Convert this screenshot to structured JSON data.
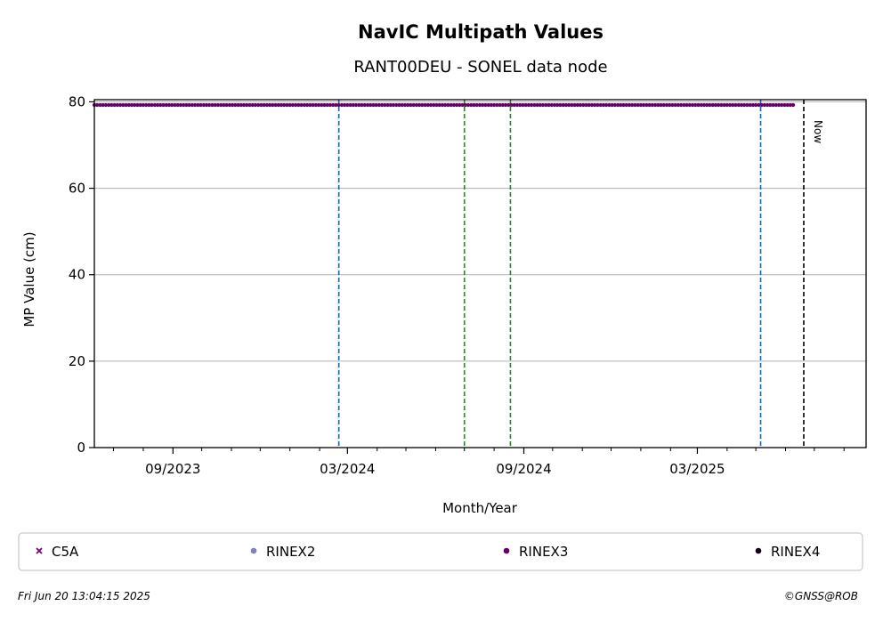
{
  "chart_data": {
    "type": "scatter",
    "title": "NavIC Multipath Values",
    "subtitle": "RANT00DEU - SONEL data node",
    "xlabel": "Month/Year",
    "ylabel": "MP Value (cm)",
    "xlim": [
      "2023-06-11",
      "2025-08-24"
    ],
    "ylim": [
      0,
      80.5
    ],
    "yticks": [
      0,
      20,
      40,
      60,
      80
    ],
    "xticks": [
      {
        "date": "2023-09-01",
        "label": "09/2023"
      },
      {
        "date": "2024-03-01",
        "label": "03/2024"
      },
      {
        "date": "2024-09-01",
        "label": "09/2024"
      },
      {
        "date": "2025-03-01",
        "label": "03/2025"
      }
    ],
    "minor_ticks": [
      "2023-07-01",
      "2023-08-01",
      "2023-10-01",
      "2023-11-01",
      "2023-12-01",
      "2024-01-01",
      "2024-02-01",
      "2024-04-01",
      "2024-05-01",
      "2024-06-01",
      "2024-07-01",
      "2024-08-01",
      "2024-10-01",
      "2024-11-01",
      "2024-12-01",
      "2025-01-01",
      "2025-02-01",
      "2025-04-01",
      "2025-05-01",
      "2025-06-01",
      "2025-07-01",
      "2025-08-01"
    ],
    "grid": "horizontal",
    "series": [
      {
        "name": "RINEX3",
        "color": "#660066",
        "marker": "dot",
        "x_start": "2023-06-11",
        "x_end": "2025-06-11",
        "y": 81.3
      }
    ],
    "vlines": [
      {
        "date": "2024-02-21",
        "color": "#1f5fa0",
        "style": "dashed"
      },
      {
        "date": "2024-07-01",
        "color": "#1a8a1a",
        "style": "dashed"
      },
      {
        "date": "2024-08-18",
        "color": "#1a8a1a",
        "style": "dashed"
      },
      {
        "date": "2025-05-06",
        "color": "#1f5fa0",
        "style": "dashed"
      },
      {
        "date": "2025-06-20",
        "color": "#000000",
        "style": "dashed",
        "label": "Now"
      }
    ],
    "legend": [
      {
        "label": "C5A",
        "marker": "x",
        "color": "#800080"
      },
      {
        "label": "RINEX2",
        "marker": "dot",
        "color": "#8080c0"
      },
      {
        "label": "RINEX3",
        "marker": "dot",
        "color": "#660066"
      },
      {
        "label": "RINEX4",
        "marker": "dot",
        "color": "#1a0020"
      }
    ],
    "legend_position": "bottom"
  },
  "footer": {
    "timestamp": "Fri Jun 20 13:04:15 2025",
    "credit": "©GNSS@ROB"
  }
}
